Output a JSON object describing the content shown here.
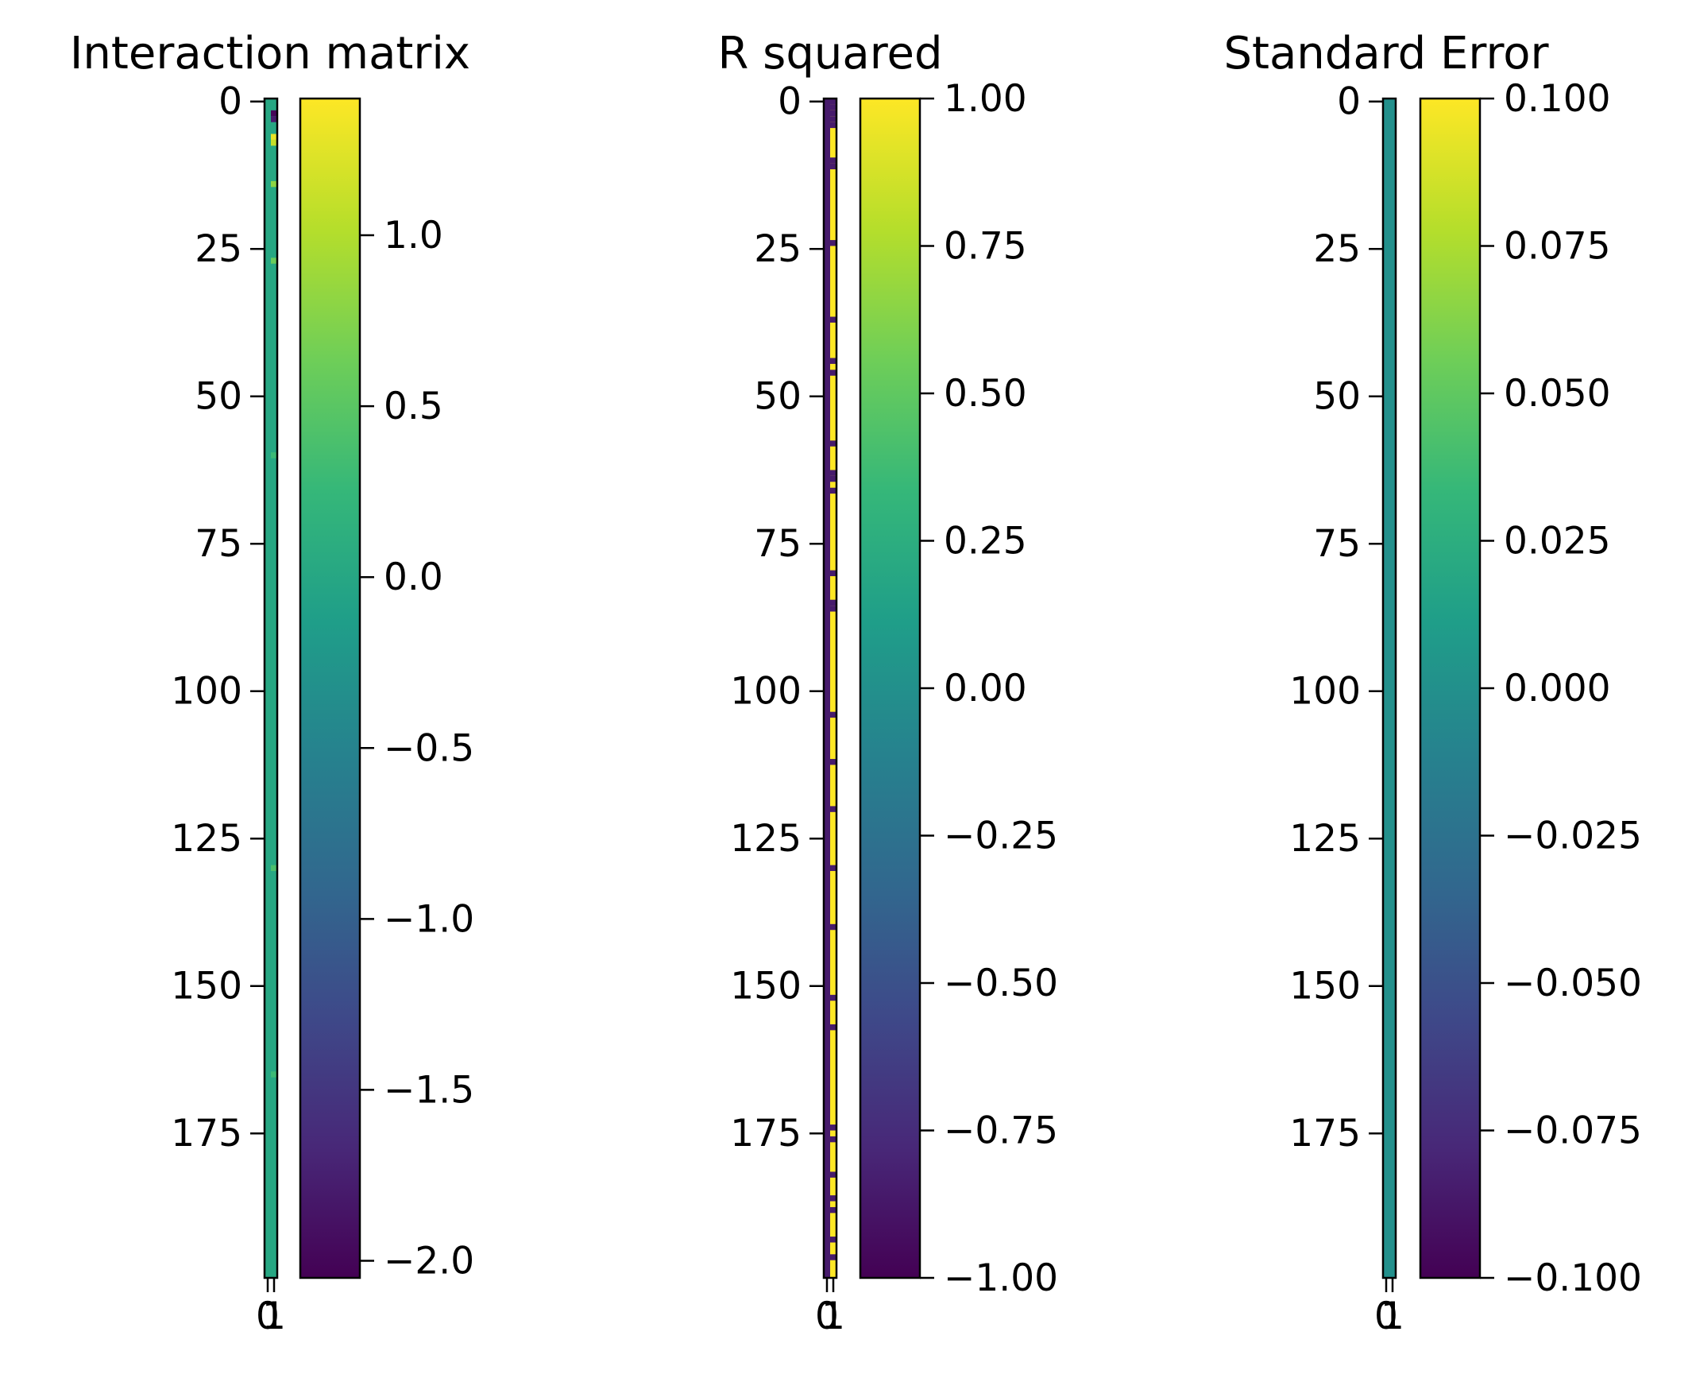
{
  "figure": {
    "background": "#ffffff"
  },
  "colormap": {
    "name": "viridis",
    "stops": [
      "#440154",
      "#482878",
      "#3e4989",
      "#31688e",
      "#26828e",
      "#1f9e89",
      "#35b779",
      "#6ece58",
      "#b5de2b",
      "#fde725"
    ]
  },
  "chart_data": [
    {
      "type": "heatmap",
      "title": "Interaction matrix",
      "rows": 200,
      "columns": 2,
      "yticks": [
        0,
        25,
        50,
        75,
        100,
        125,
        150,
        175
      ],
      "xticks": [
        0,
        1
      ],
      "colorbar": {
        "min": -2.05,
        "max": 1.4,
        "ticks": [
          1.0,
          0.5,
          0.0,
          -0.5,
          -1.0,
          -1.5,
          -2.0
        ],
        "tick_labels": [
          "1.0",
          "0.5",
          "0.0",
          "−0.5",
          "−1.0",
          "−1.5",
          "−2.0"
        ]
      },
      "base_value": 0.0,
      "cells": [
        {
          "row": 2,
          "col": 1,
          "value": -2.0
        },
        {
          "row": 3,
          "col": 1,
          "value": -1.8
        },
        {
          "row": 6,
          "col": 1,
          "value": 1.3
        },
        {
          "row": 7,
          "col": 1,
          "value": 1.1
        },
        {
          "row": 14,
          "col": 1,
          "value": 0.8
        },
        {
          "row": 27,
          "col": 1,
          "value": 0.6
        },
        {
          "row": 60,
          "col": 1,
          "value": 0.3
        },
        {
          "row": 130,
          "col": 1,
          "value": 0.4
        },
        {
          "row": 165,
          "col": 1,
          "value": 0.3
        }
      ]
    },
    {
      "type": "heatmap",
      "title": "R squared",
      "rows": 200,
      "columns": 2,
      "yticks": [
        0,
        25,
        50,
        75,
        100,
        125,
        150,
        175
      ],
      "xticks": [
        0,
        1
      ],
      "colorbar": {
        "min": -1.0,
        "max": 1.0,
        "ticks": [
          1.0,
          0.75,
          0.5,
          0.25,
          0.0,
          -0.25,
          -0.5,
          -0.75,
          -1.0
        ],
        "tick_labels": [
          "1.00",
          "0.75",
          "0.50",
          "0.25",
          "0.00",
          "−0.25",
          "−0.50",
          "−0.75",
          "−1.00"
        ]
      },
      "column_values": [
        -0.85,
        1.0
      ],
      "gaps": [
        {
          "col": 1,
          "rows": [
            0,
            1,
            2,
            3,
            4,
            10,
            11,
            24,
            37,
            44,
            46,
            58,
            63,
            64,
            66,
            80,
            85,
            86,
            104,
            112,
            120,
            130,
            140,
            152,
            157,
            174,
            176,
            182,
            186,
            188,
            193,
            196
          ],
          "value": -0.85
        }
      ]
    },
    {
      "type": "heatmap",
      "title": "Standard Error",
      "rows": 200,
      "columns": 2,
      "yticks": [
        0,
        25,
        50,
        75,
        100,
        125,
        150,
        175
      ],
      "xticks": [
        0,
        1
      ],
      "colorbar": {
        "min": -0.1,
        "max": 0.1,
        "ticks": [
          0.1,
          0.075,
          0.05,
          0.025,
          0.0,
          -0.025,
          -0.05,
          -0.075,
          -0.1
        ],
        "tick_labels": [
          "0.100",
          "0.075",
          "0.050",
          "0.025",
          "0.000",
          "−0.025",
          "−0.050",
          "−0.075",
          "−0.100"
        ]
      },
      "base_value": 0.0
    }
  ]
}
